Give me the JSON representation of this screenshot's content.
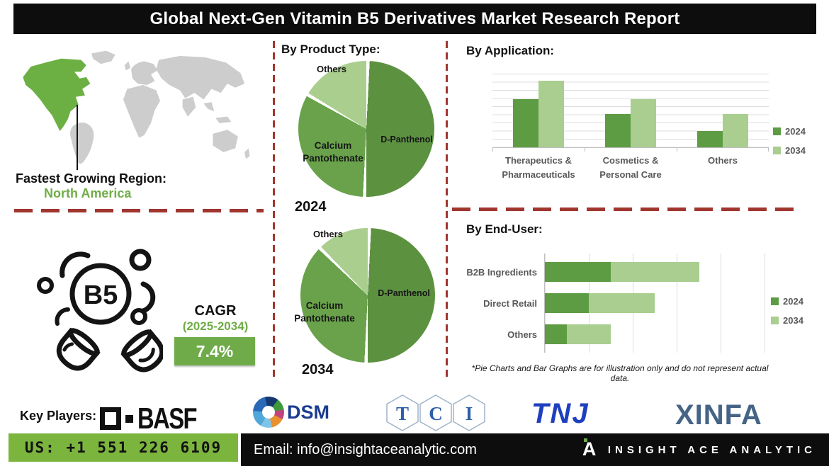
{
  "title": "Global Next-Gen Vitamin B5 Derivatives Market Research Report",
  "region": {
    "heading": "Fastest Growing Region:",
    "value": "North America"
  },
  "b5_icon": {
    "text": "B5"
  },
  "cagr": {
    "label": "CAGR",
    "period": "(2025-2034)",
    "value": "7.4%"
  },
  "sections": {
    "product_type": {
      "heading": "By Product Type:",
      "pie_year_1": "2024",
      "pie_year_2": "2034"
    },
    "application": {
      "heading": "By Application:"
    },
    "end_user": {
      "heading": "By End-User:",
      "footnote": "*Pie Charts and Bar Graphs are for illustration only and do not represent actual data."
    }
  },
  "chart_data": [
    {
      "id": "product-type-2024",
      "type": "pie",
      "title": "By Product Type — 2024",
      "labels": [
        "D-Panthenol",
        "Calcium Pantothenate",
        "Others"
      ],
      "values": [
        50,
        33,
        17
      ],
      "colors": [
        "#5C9140",
        "#69A24B",
        "#A9CE8E"
      ],
      "note": "illustration only"
    },
    {
      "id": "product-type-2034",
      "type": "pie",
      "title": "By Product Type — 2034",
      "labels": [
        "D-Panthenol",
        "Calcium Pantothenate",
        "Others"
      ],
      "values": [
        50,
        37,
        13
      ],
      "colors": [
        "#5C9140",
        "#69A24B",
        "#A9CE8E"
      ],
      "note": "illustration only"
    },
    {
      "id": "by-application",
      "type": "bar",
      "title": "By Application:",
      "categories": [
        "Therapeutics &\nPharmaceuticals",
        "Cosmetics &\nPersonal Care",
        "Others"
      ],
      "series": [
        {
          "name": "2024",
          "color": "#5E9C44",
          "values": [
            65,
            45,
            22
          ]
        },
        {
          "name": "2034",
          "color": "#A9CE8F",
          "values": [
            90,
            65,
            45
          ]
        }
      ],
      "ylim": [
        0,
        100
      ],
      "grid": true,
      "legend_position": "right",
      "note": "illustration only"
    },
    {
      "id": "by-end-user",
      "type": "bar",
      "orientation": "horizontal",
      "stacked": true,
      "title": "By End-User:",
      "categories": [
        "B2B Ingredients",
        "Direct Retail",
        "Others"
      ],
      "series": [
        {
          "name": "2024",
          "color": "#5E9C44",
          "values": [
            30,
            20,
            10
          ]
        },
        {
          "name": "2034",
          "color": "#A9CE8F",
          "values": [
            40,
            30,
            20
          ]
        }
      ],
      "xlim": [
        0,
        100
      ],
      "grid": true,
      "legend_position": "right",
      "note": "illustration only"
    }
  ],
  "key_players": {
    "label": "Key Players:",
    "players": [
      "BASF",
      "DSM",
      "TCI",
      "TNJ",
      "XINFA"
    ],
    "basf_text": "BASF",
    "dsm_text": "DSM",
    "tci_letters": [
      "T",
      "C",
      "I"
    ],
    "tnj_text": "TNJ",
    "xinfa_text": "XINFA"
  },
  "contact": {
    "phone": "US: +1 551 226 6109",
    "email": "Email: info@insightaceanalytic.com",
    "brand": "INSIGHT ACE ANALYTIC",
    "brand_mark": "A"
  },
  "colors": {
    "dark_green_2024": "#5E9C44",
    "light_green_2034": "#A9CE8F",
    "phone_bar_green": "#7CB53E",
    "cagr_box_green": "#6FAC49",
    "map_highlight_green": "#6CB043",
    "map_gray": "#CDCDCD",
    "green_text": "#70AD47",
    "dash_red": "#A0362F",
    "title_bar_black": "#0d0d0d"
  }
}
